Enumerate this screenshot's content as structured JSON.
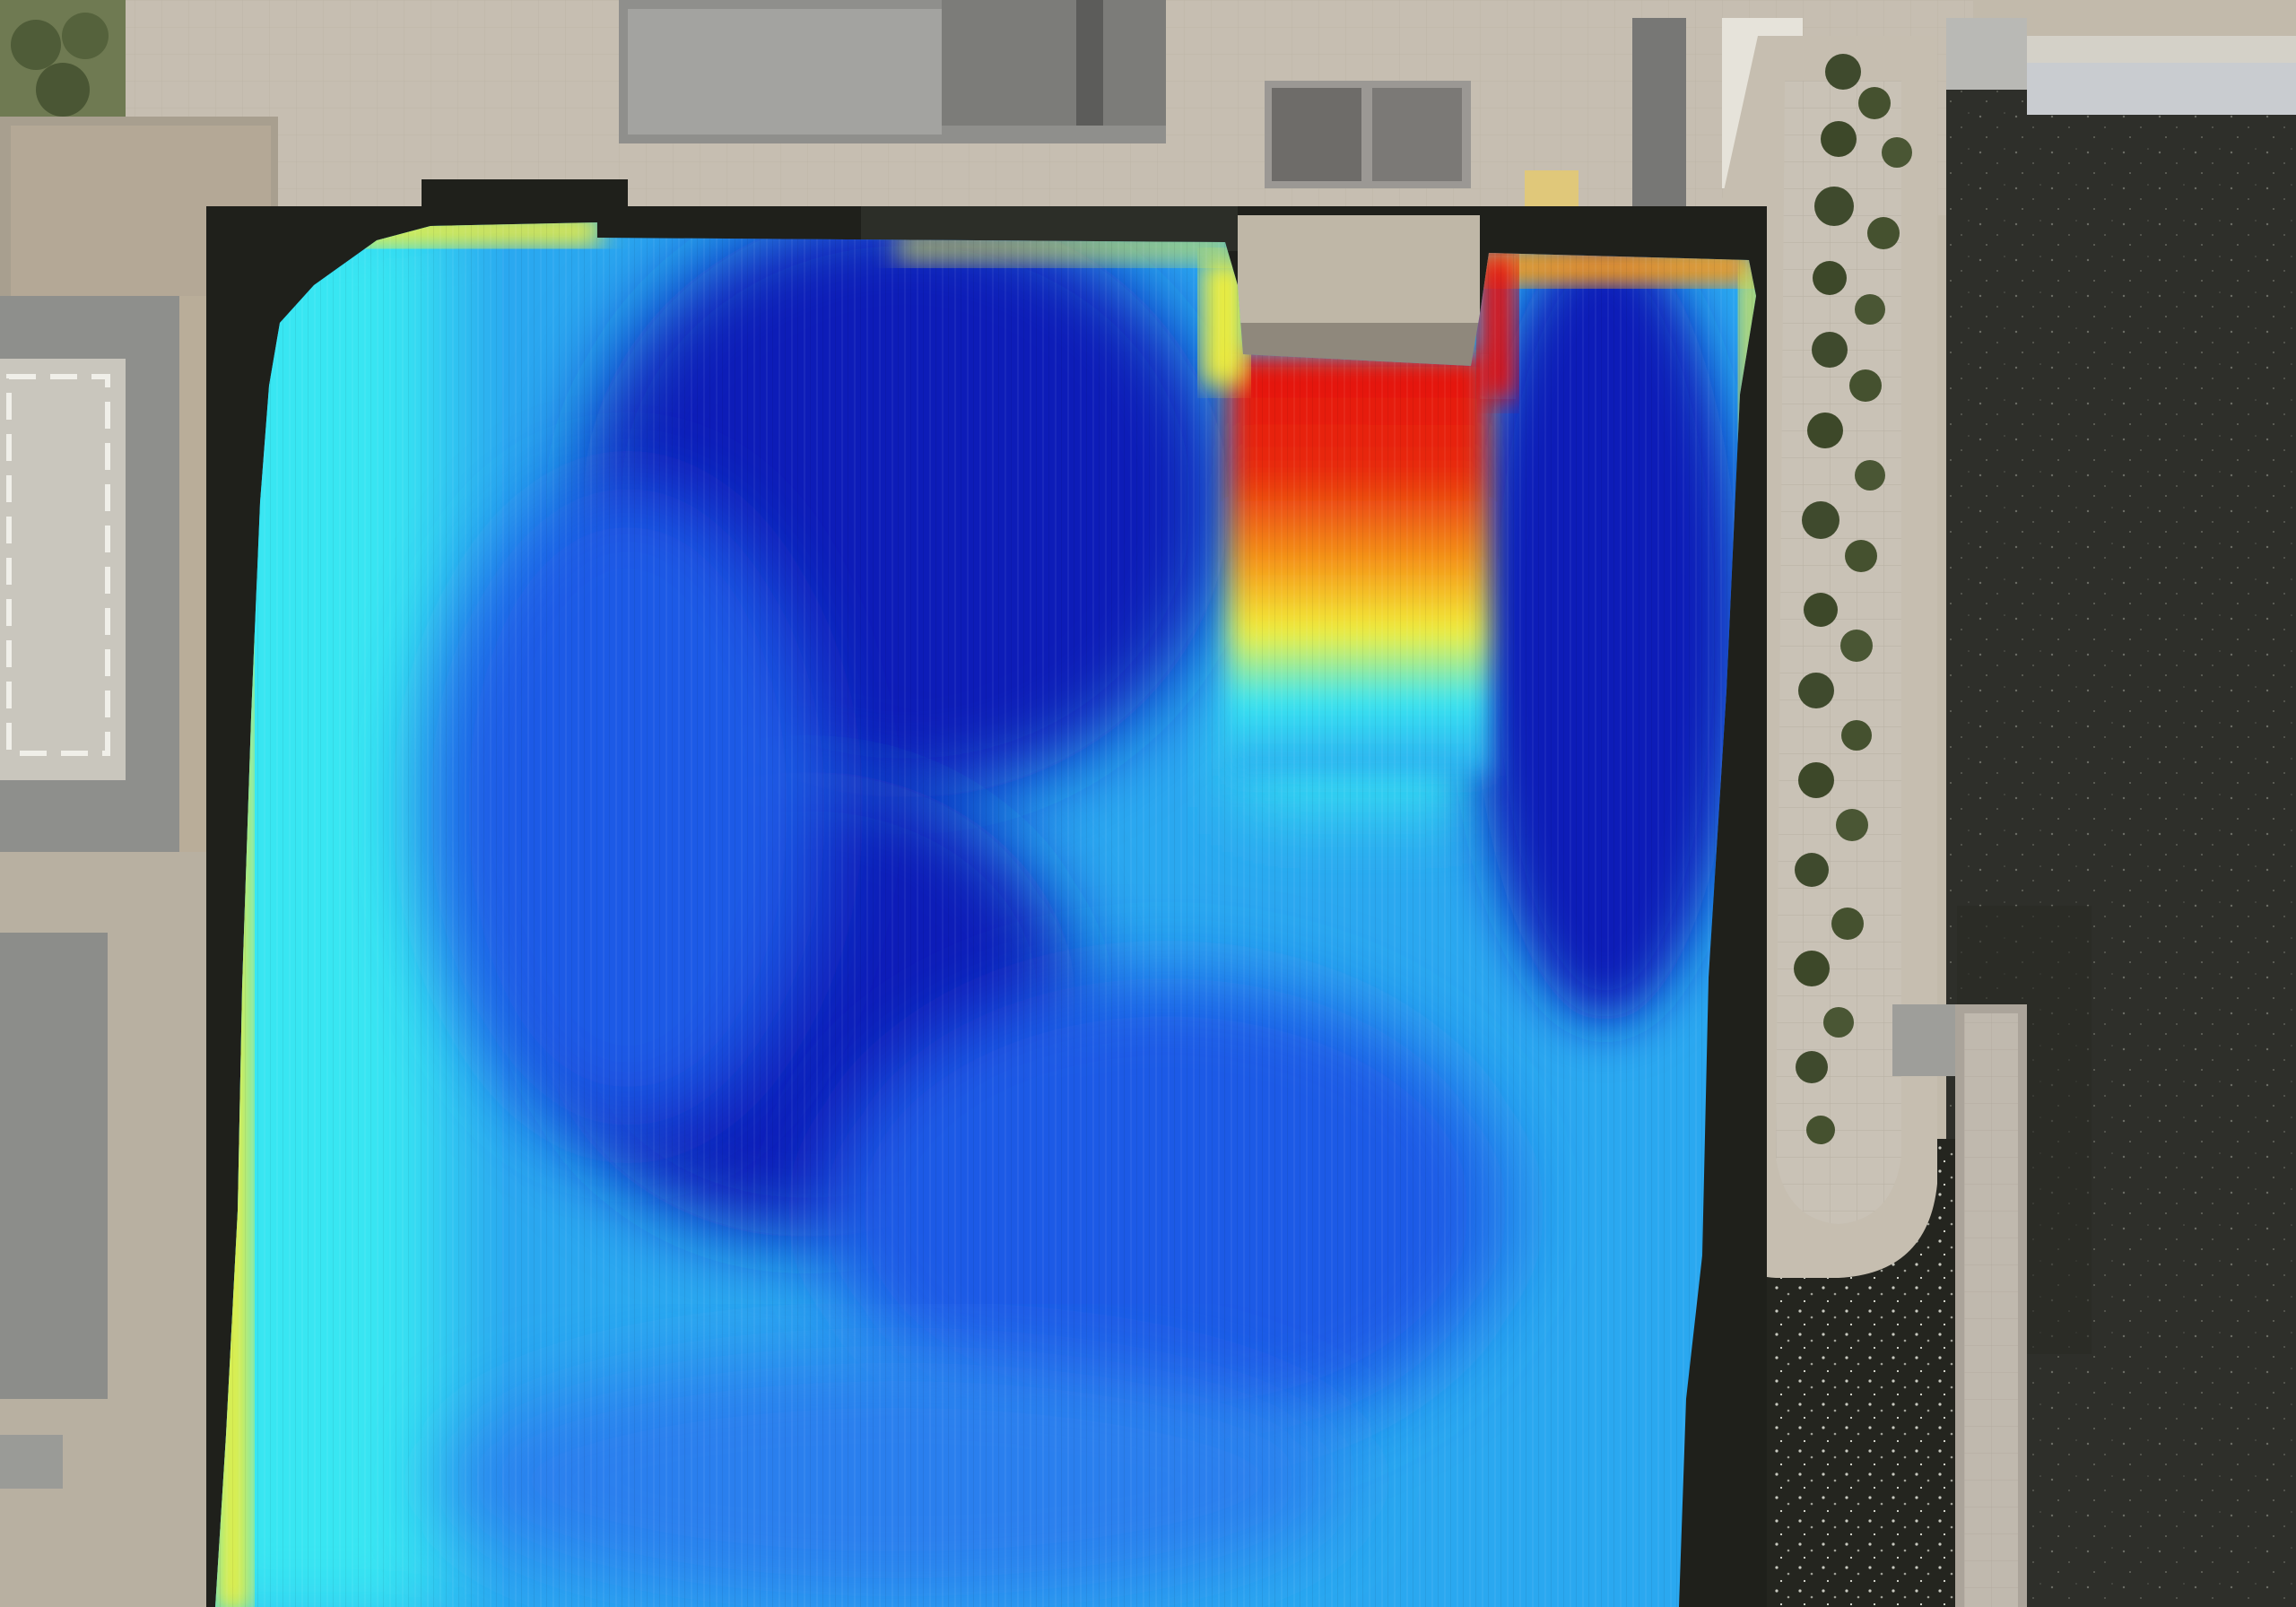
{
  "map": {
    "view": "aerial-orthophoto",
    "base_layer": "satellite-imagery",
    "overlay": {
      "type": "bathymetry-heatmap",
      "colormap": "jet",
      "colors": {
        "deep": "#0a1ab8",
        "mid_deep": "#1e5ae6",
        "mid": "#2aa8f0",
        "shallow": "#38e6f2",
        "edge": "#f2f03a",
        "warm": "#f59a1a",
        "hot": "#e41010"
      },
      "legend_visible": false
    },
    "features": [
      "dock-basin",
      "quay-wall-west",
      "quay-wall-east",
      "tree-lined-promenade",
      "pier-east",
      "river-water",
      "buildings-north",
      "building-west-complex"
    ]
  }
}
